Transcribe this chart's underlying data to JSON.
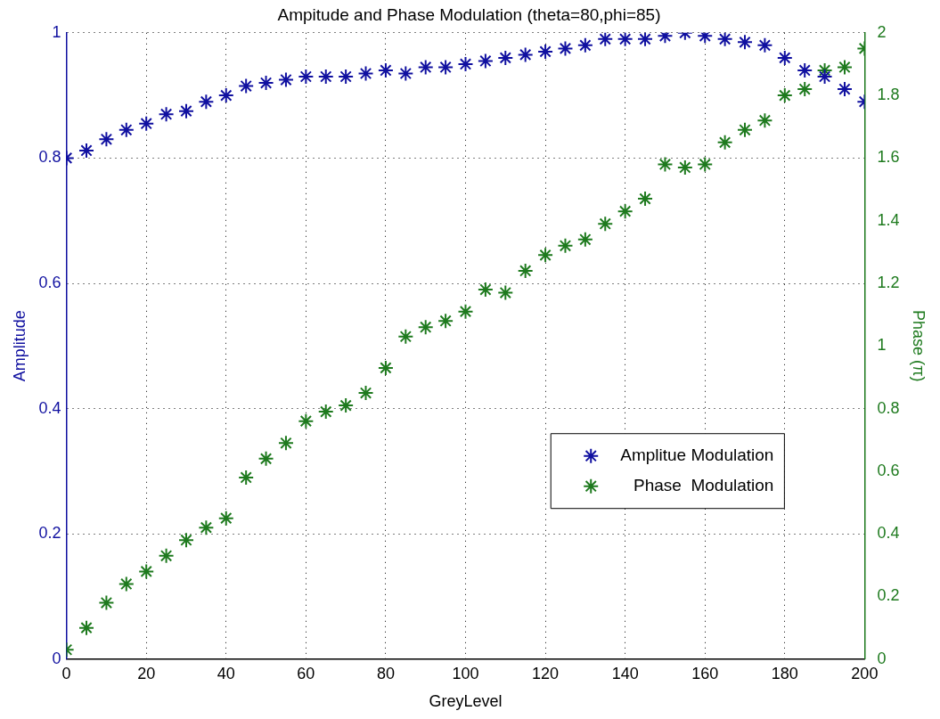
{
  "chart_data": {
    "type": "scatter",
    "title": "Ampitude and Phase Modulation (theta=80,phi=85)",
    "xlabel": "GreyLevel",
    "ylabel": "Amplitude",
    "y2label": "Phase (π)",
    "x": [
      0,
      5,
      10,
      15,
      20,
      25,
      30,
      35,
      40,
      45,
      50,
      55,
      60,
      65,
      70,
      75,
      80,
      85,
      90,
      95,
      100,
      105,
      110,
      115,
      120,
      125,
      130,
      135,
      140,
      145,
      150,
      155,
      160,
      165,
      170,
      175,
      180,
      185,
      190,
      195,
      200
    ],
    "series": [
      {
        "name": "Amplitue Modulation",
        "color": "#1010a0",
        "values": [
          0.8,
          0.812,
          0.83,
          0.845,
          0.855,
          0.87,
          0.875,
          0.89,
          0.9,
          0.915,
          0.92,
          0.925,
          0.93,
          0.93,
          0.93,
          0.935,
          0.94,
          0.935,
          0.945,
          0.945,
          0.95,
          0.955,
          0.96,
          0.965,
          0.97,
          0.975,
          0.98,
          0.99,
          0.99,
          0.99,
          0.995,
          1.0,
          0.995,
          0.99,
          0.985,
          0.98,
          0.96,
          0.94,
          0.93,
          0.91,
          0.89
        ]
      },
      {
        "name": "Phase  Modulation",
        "color": "#1e7a1e",
        "axis": "y2",
        "values": [
          0.03,
          0.1,
          0.18,
          0.24,
          0.28,
          0.33,
          0.38,
          0.42,
          0.45,
          0.58,
          0.64,
          0.69,
          0.76,
          0.79,
          0.81,
          0.85,
          0.93,
          1.03,
          1.06,
          1.08,
          1.11,
          1.18,
          1.17,
          1.24,
          1.29,
          1.32,
          1.34,
          1.39,
          1.43,
          1.47,
          1.58,
          1.57,
          1.58,
          1.65,
          1.69,
          1.72,
          1.8,
          1.82,
          1.88,
          1.89,
          1.95
        ]
      }
    ],
    "xlim": [
      0,
      200
    ],
    "xticks": [
      0,
      20,
      40,
      60,
      80,
      100,
      120,
      140,
      160,
      180,
      200
    ],
    "ylim": [
      0,
      1
    ],
    "yticks": [
      0,
      0.2,
      0.4,
      0.6,
      0.8,
      1
    ],
    "y2lim": [
      0,
      2
    ],
    "y2ticks": [
      0,
      0.2,
      0.4,
      0.6,
      0.8,
      1,
      1.2,
      1.4,
      1.6,
      1.8,
      2
    ],
    "grid": true,
    "legend": "bottom right",
    "marker": "cross"
  }
}
